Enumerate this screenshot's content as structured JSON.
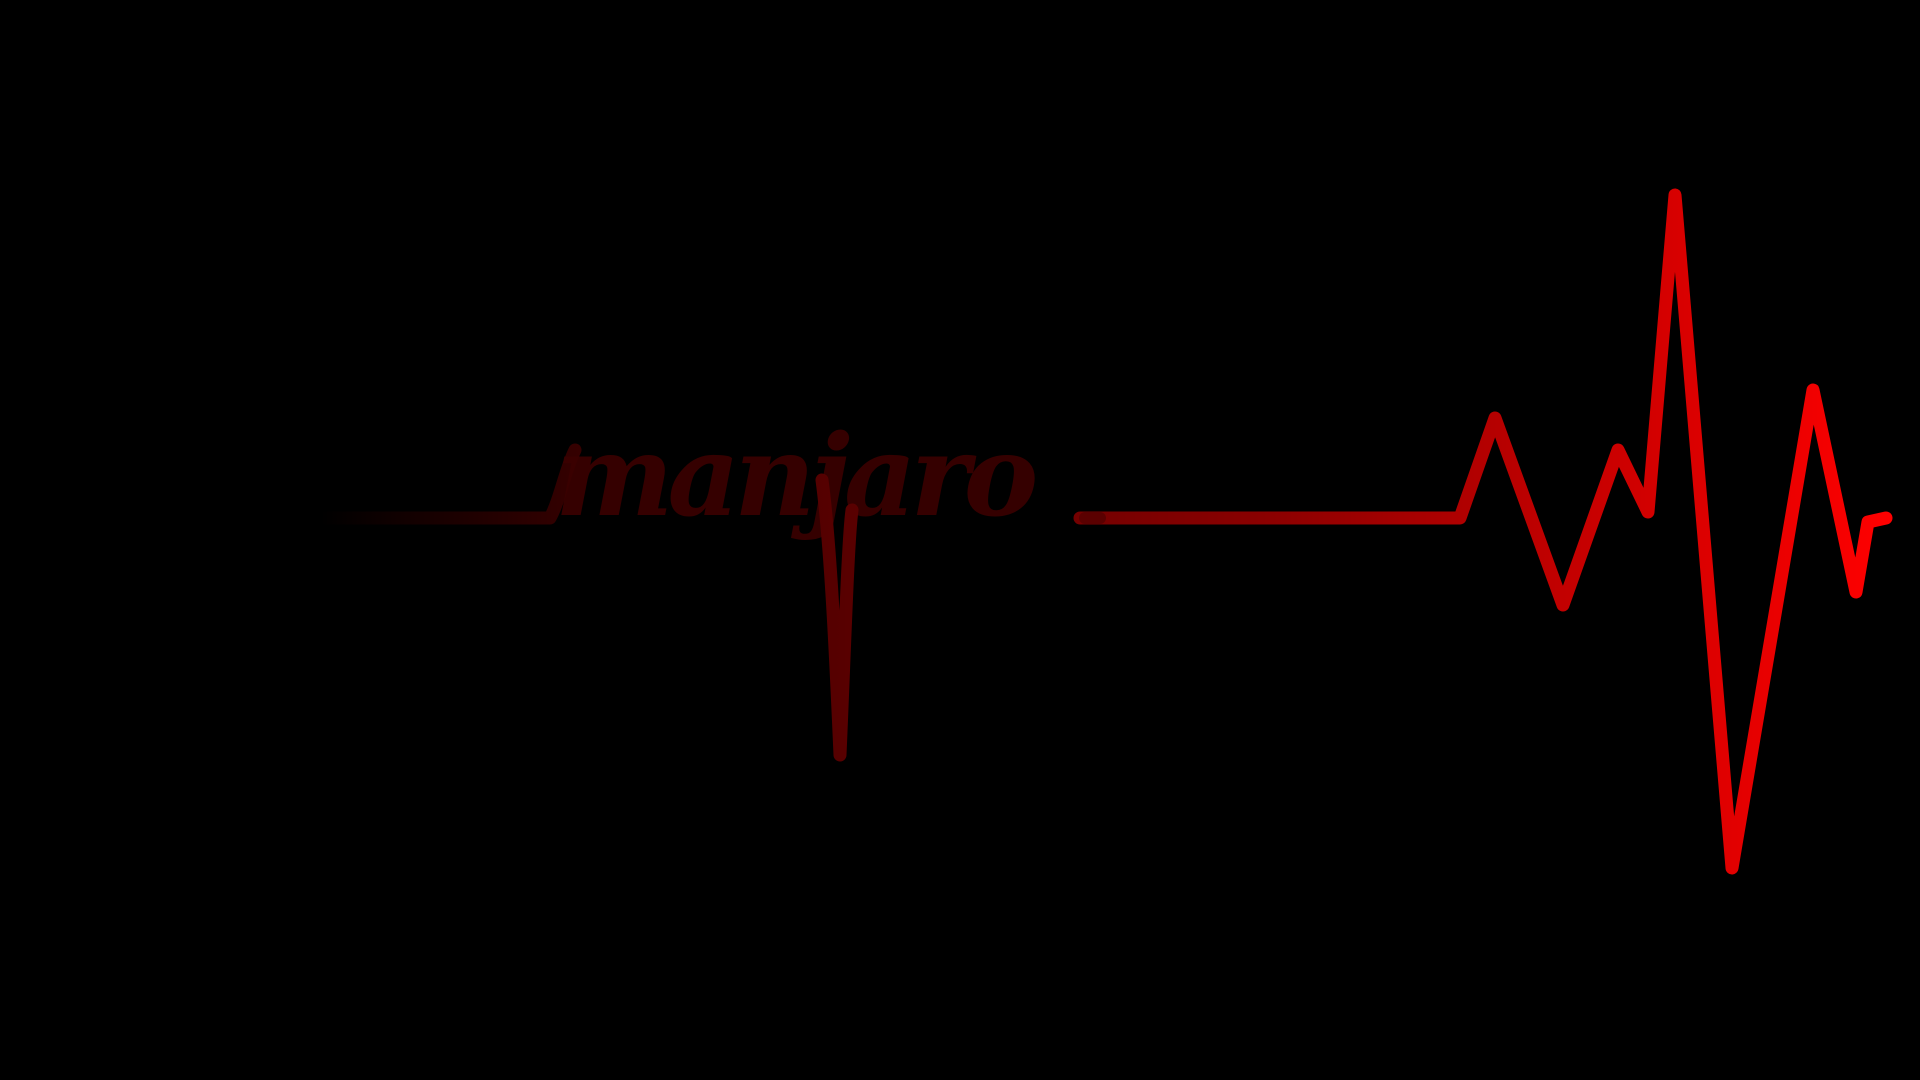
{
  "wallpaper": {
    "wordmark": "manjaro",
    "background_color": "#000000",
    "grid_color": "#3fae7f",
    "trace_color_start": "#3a0000",
    "trace_color_end": "#ff0000",
    "icon": "heartbeat-line-icon"
  }
}
